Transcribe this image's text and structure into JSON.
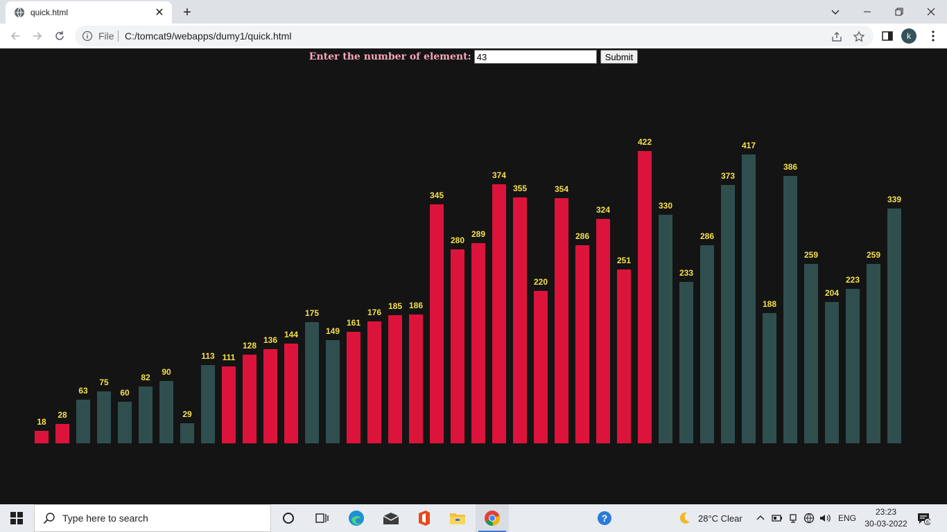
{
  "browser": {
    "tab_title": "quick.html",
    "new_tab": "+",
    "omnibox": {
      "scheme_label": "File",
      "url": "C:/tomcat9/webapps/dumy1/quick.html"
    },
    "profile_initial": "k"
  },
  "form": {
    "label": "Enter the number of element:",
    "input_value": "43",
    "submit_label": "Submit"
  },
  "chart_data": {
    "type": "bar",
    "values": [
      18,
      28,
      63,
      75,
      60,
      82,
      90,
      29,
      113,
      111,
      128,
      136,
      144,
      175,
      149,
      161,
      176,
      185,
      186,
      345,
      280,
      289,
      374,
      355,
      220,
      354,
      286,
      324,
      251,
      422,
      330,
      233,
      286,
      373,
      417,
      188,
      386,
      259,
      204,
      223,
      259,
      339
    ],
    "colors": [
      "red",
      "red",
      "slate",
      "slate",
      "slate",
      "slate",
      "slate",
      "slate",
      "slate",
      "red",
      "red",
      "red",
      "red",
      "slate",
      "slate",
      "red",
      "red",
      "red",
      "red",
      "red",
      "red",
      "red",
      "red",
      "red",
      "red",
      "red",
      "red",
      "red",
      "red",
      "red",
      "slate",
      "slate",
      "slate",
      "slate",
      "slate",
      "slate",
      "slate",
      "slate",
      "slate",
      "slate",
      "slate",
      "slate"
    ],
    "palette": {
      "red": "#dc143c",
      "slate": "#2f4f4f",
      "label": "#f5e04a"
    },
    "ylim": [
      0,
      422
    ],
    "data_labels": true
  },
  "taskbar": {
    "search_placeholder": "Type here to search",
    "weather": "28°C  Clear",
    "language": "ENG",
    "time": "23:23",
    "date": "30-03-2022",
    "notification_count": "6"
  }
}
